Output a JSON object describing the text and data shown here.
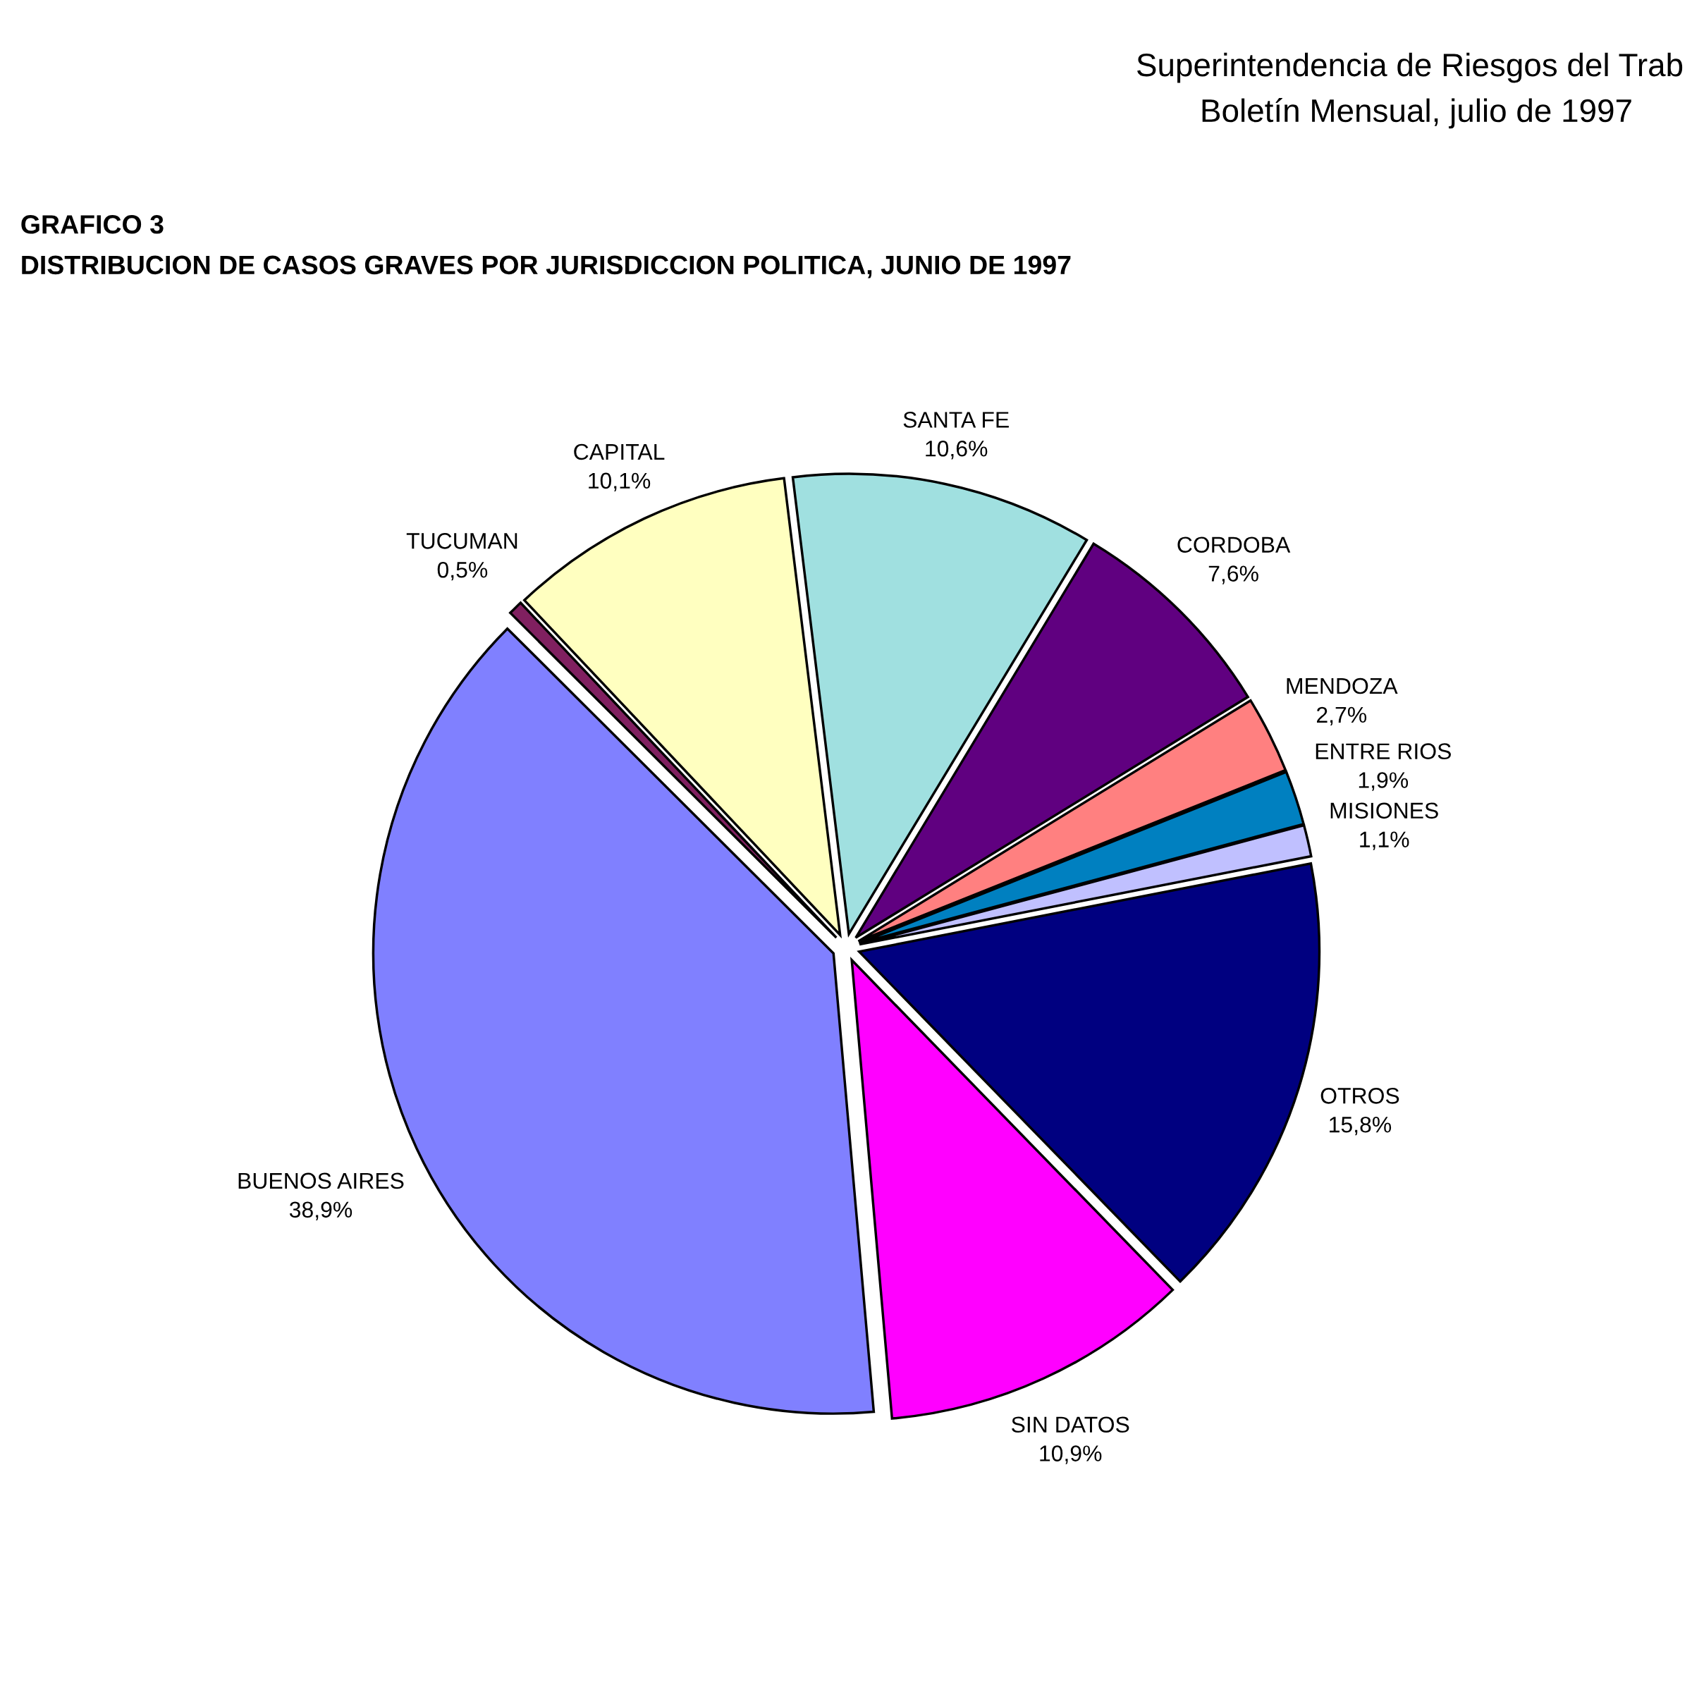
{
  "chart_data": {
    "type": "pie",
    "title": "GRAFICO 3",
    "subtitle": "DISTRIBUCION DE CASOS GRAVES POR JURISDICCION POLITICA, JUNIO DE 1997",
    "annotations": [
      "Superintendencia de Riesgos del Trab",
      "Boletín Mensual, julio de 1997"
    ],
    "categories": [
      "SANTA FE",
      "CORDOBA",
      "MENDOZA",
      "ENTRE RIOS",
      "MISIONES",
      "OTROS",
      "SIN DATOS",
      "BUENOS AIRES",
      "TUCUMAN",
      "CAPITAL"
    ],
    "values": [
      10.6,
      7.6,
      2.7,
      1.9,
      1.1,
      15.8,
      10.9,
      38.9,
      0.5,
      10.1
    ],
    "value_labels": [
      "10,6%",
      "7,6%",
      "2,7%",
      "1,9%",
      "1,1%",
      "15,8%",
      "10,9%",
      "38,9%",
      "0,5%",
      "10,1%"
    ],
    "colors": [
      "#a0e0e0",
      "#600080",
      "#ff8080",
      "#0080c0",
      "#c0c0ff",
      "#000080",
      "#ff00ff",
      "#8080ff",
      "#802060",
      "#ffffc0"
    ],
    "legend": false
  }
}
